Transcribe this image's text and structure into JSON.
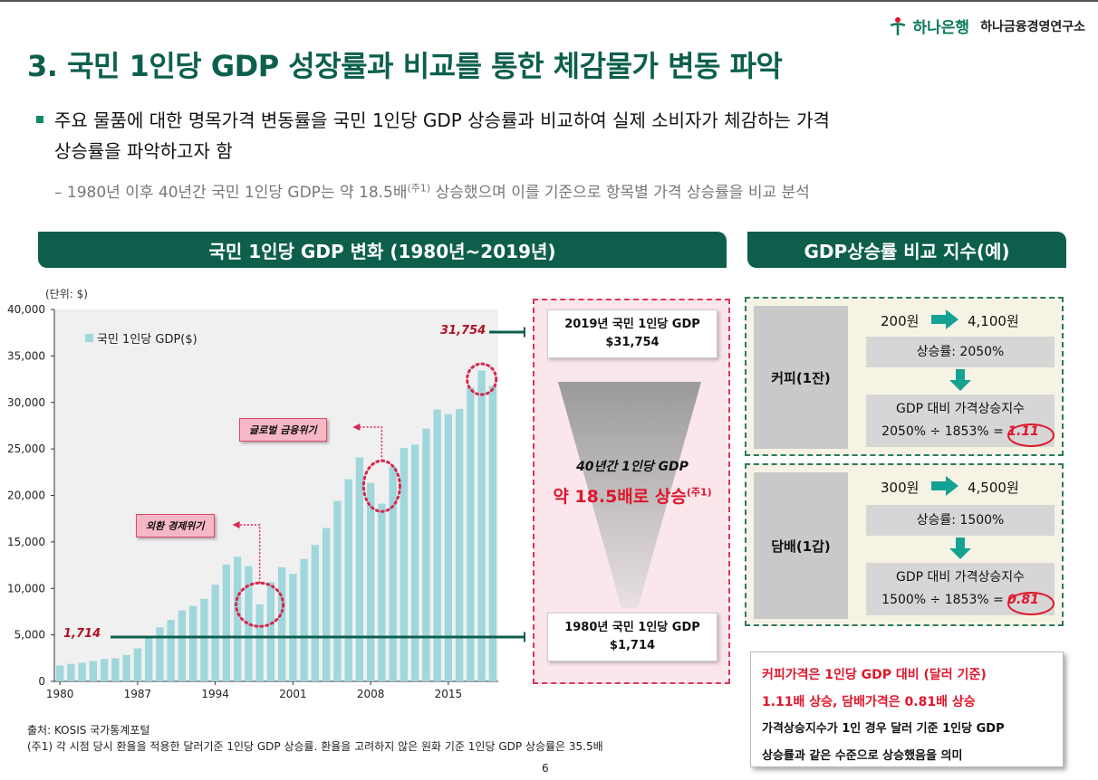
{
  "header": {
    "brand_name": "하나은행",
    "brand_sub": "하나금융경영연구소",
    "title": "3. 국민 1인당 GDP 성장률과 비교를 통한 체감물가 변동 파악"
  },
  "bullets": {
    "main_line1": "주요 물품에 대한 명목가격 변동률을 국민 1인당 GDP 상승률과 비교하여 실제 소비자가 체감하는 가격",
    "main_line2": "상승률을 파악하고자 함",
    "sub_before": "– 1980년 이후 40년간 국민 1인당 GDP는 약 18.5배",
    "sub_note": "(주1)",
    "sub_after": " 상승했으며 이를 기준으로 항목별 가격 상승률을 비교 분석"
  },
  "left_section": {
    "banner": "국민 1인당 GDP 변화 (1980년~2019년)",
    "unit": "(단위: $)",
    "legend": "국민 1인당 GDP($)",
    "max_label": "31,754",
    "min_label": "1,714",
    "tag_gfc": "글로벌 금융위기",
    "tag_fx": "외환 경제위기"
  },
  "chart_data": {
    "type": "bar",
    "categories": [
      "1980",
      "1981",
      "1982",
      "1983",
      "1984",
      "1985",
      "1986",
      "1987",
      "1988",
      "1989",
      "1990",
      "1991",
      "1992",
      "1993",
      "1994",
      "1995",
      "1996",
      "1997",
      "1998",
      "1999",
      "2000",
      "2001",
      "2002",
      "2003",
      "2004",
      "2005",
      "2006",
      "2007",
      "2008",
      "2009",
      "2010",
      "2011",
      "2012",
      "2013",
      "2014",
      "2015",
      "2016",
      "2017",
      "2018",
      "2019"
    ],
    "series": [
      {
        "name": "국민 1인당 GDP($)",
        "values": [
          1714,
          1883,
          1993,
          2199,
          2413,
          2482,
          2835,
          3555,
          4748,
          5817,
          6610,
          7637,
          8127,
          8885,
          10385,
          12564,
          13403,
          12398,
          8282,
          10672,
          12261,
          11563,
          13165,
          14673,
          16496,
          19403,
          21743,
          24086,
          21345,
          19122,
          23087,
          25096,
          25466,
          27182,
          29249,
          28732,
          29288,
          31605,
          33434,
          31754
        ]
      }
    ],
    "xticks": [
      "1980",
      "1987",
      "1994",
      "2001",
      "2008",
      "2015"
    ],
    "yticks": [
      "0",
      "5,000",
      "10,000",
      "15,000",
      "20,000",
      "25,000",
      "30,000",
      "35,000",
      "40,000"
    ],
    "ylim": [
      0,
      40000
    ],
    "color": "#9fd7dc",
    "plot_bg": "#f0f0f0"
  },
  "middle": {
    "top_card_line1": "2019년 국민 1인당 GDP",
    "top_card_line2": "$31,754",
    "bottom_card_line1": "1980년 국민 1인당 GDP",
    "bottom_card_line2": "$1,714",
    "funnel_line1": "40년간 1인당 GDP",
    "funnel_line2": "약 18.5배로 상승",
    "funnel_note": "(주1)"
  },
  "right_section": {
    "banner": "GDP상승률 비교 지수(예)",
    "item1": {
      "label": "커피(1잔)",
      "price_from": "200원",
      "price_to": "4,100원",
      "rate": "상승률: 2050%",
      "index_title": "GDP 대비 가격상승지수",
      "formula": "2050% ÷ 1853% =",
      "result": "1.11"
    },
    "item2": {
      "label": "담배(1갑)",
      "price_from": "300원",
      "price_to": "4,500원",
      "rate": "상승률: 1500%",
      "index_title": "GDP 대비 가격상승지수",
      "formula": "1500% ÷ 1853% =",
      "result": "0.81"
    },
    "summary": {
      "line1": "커피가격은 1인당 GDP 대비 (달러 기준)",
      "line2": "1.11배 상승, 담배가격은 0.81배  상승",
      "line3": "가격상승지수가 1인 경우 달러 기준 1인당 GDP",
      "line4": "상승률과 같은 수준으로 상승했음을 의미"
    }
  },
  "footer": {
    "source": "출처: KOSIS 국가통계포털",
    "note": "(주1) 각 시점 당시 환율을 적용한 달러기준 1인당 GDP 상승률. 환율을 고려하지 않은 원화 기준 1인당 GDP 상승률은 35.5배",
    "page": "6"
  },
  "colors": {
    "brand_green": "#0c5f4d",
    "accent_red": "#e0162b",
    "bar_teal": "#9fd7dc"
  }
}
